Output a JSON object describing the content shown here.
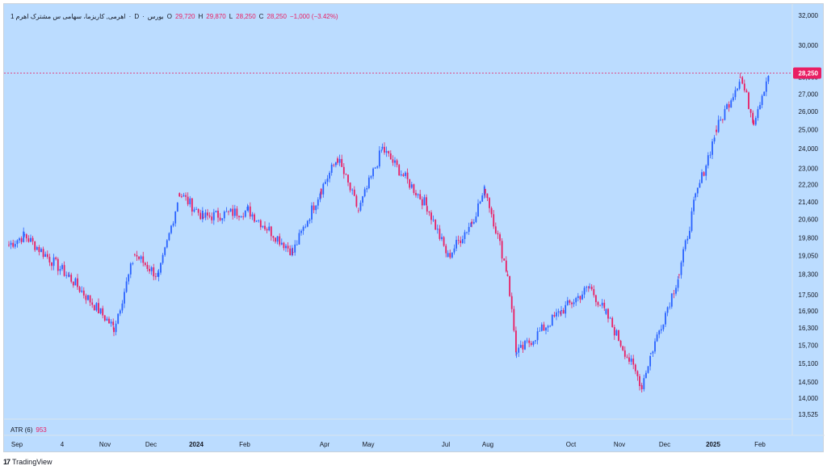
{
  "legend": {
    "symbol": "1 اهرمی, کاریزما، سهامی س مشترک اهرم",
    "interval": "D",
    "exchange": "بورس",
    "open_label": "O",
    "open": "29,720",
    "high_label": "H",
    "high": "29,870",
    "low_label": "L",
    "low": "28,250",
    "close_label": "C",
    "close": "28,250",
    "change": "−1,000 (−3.42%)"
  },
  "indicator": {
    "name": "ATR (6)",
    "value": "953"
  },
  "footer": {
    "logo_mark": "17",
    "brand": "TradingView"
  },
  "colors": {
    "background": "#bbdcff",
    "up": "#2962ff",
    "down": "#e91e63",
    "price_line": "#e91e63"
  },
  "chart_data": {
    "type": "candlestick",
    "price_scale": "log",
    "y_ticks": [
      "32,000",
      "30,000",
      "28,000",
      "27,000",
      "26,000",
      "25,000",
      "24,000",
      "23,000",
      "22,200",
      "21,400",
      "20,600",
      "19,800",
      "19,050",
      "18,300",
      "17,500",
      "16,900",
      "16,300",
      "15,700",
      "15,100",
      "14,500",
      "14,000",
      "13,525"
    ],
    "x_ticks": [
      "Sep",
      "4",
      "Nov",
      "Dec",
      "2024",
      "Feb",
      "Apr",
      "May",
      "Jul",
      "Aug",
      "Oct",
      "Nov",
      "Dec",
      "2025",
      "Feb"
    ],
    "last_price": "28,250",
    "series": [
      {
        "date": "2023-08",
        "close": 19500
      },
      {
        "date": "2023-09",
        "close": 19900
      },
      {
        "date": "2023-10",
        "close": 18200
      },
      {
        "date": "2023-11-01",
        "close": 16300
      },
      {
        "date": "2023-11-15",
        "close": 19100
      },
      {
        "date": "2023-12-01",
        "close": 18200
      },
      {
        "date": "2023-12-15",
        "close": 21800
      },
      {
        "date": "2024-01",
        "close": 20700
      },
      {
        "date": "2024-02",
        "close": 21000
      },
      {
        "date": "2024-03",
        "close": 19200
      },
      {
        "date": "2024-03-20",
        "close": 22000
      },
      {
        "date": "2024-04",
        "close": 23500
      },
      {
        "date": "2024-04-15",
        "close": 21000
      },
      {
        "date": "2024-05",
        "close": 24000
      },
      {
        "date": "2024-06",
        "close": 21200
      },
      {
        "date": "2024-06-15",
        "close": 19000
      },
      {
        "date": "2024-07",
        "close": 20500
      },
      {
        "date": "2024-07-10",
        "close": 22000
      },
      {
        "date": "2024-07-25",
        "close": 18300
      },
      {
        "date": "2024-08",
        "close": 15400
      },
      {
        "date": "2024-09",
        "close": 16900
      },
      {
        "date": "2024-09-20",
        "close": 17800
      },
      {
        "date": "2024-10",
        "close": 16800
      },
      {
        "date": "2024-10-25",
        "close": 14400
      },
      {
        "date": "2024-11",
        "close": 15400
      },
      {
        "date": "2024-11-20",
        "close": 18300
      },
      {
        "date": "2024-12",
        "close": 21600
      },
      {
        "date": "2024-12-15",
        "close": 25000
      },
      {
        "date": "2025-01",
        "close": 28000
      },
      {
        "date": "2025-01-10",
        "close": 25500
      },
      {
        "date": "2025-01-20",
        "close": 28250
      }
    ]
  }
}
